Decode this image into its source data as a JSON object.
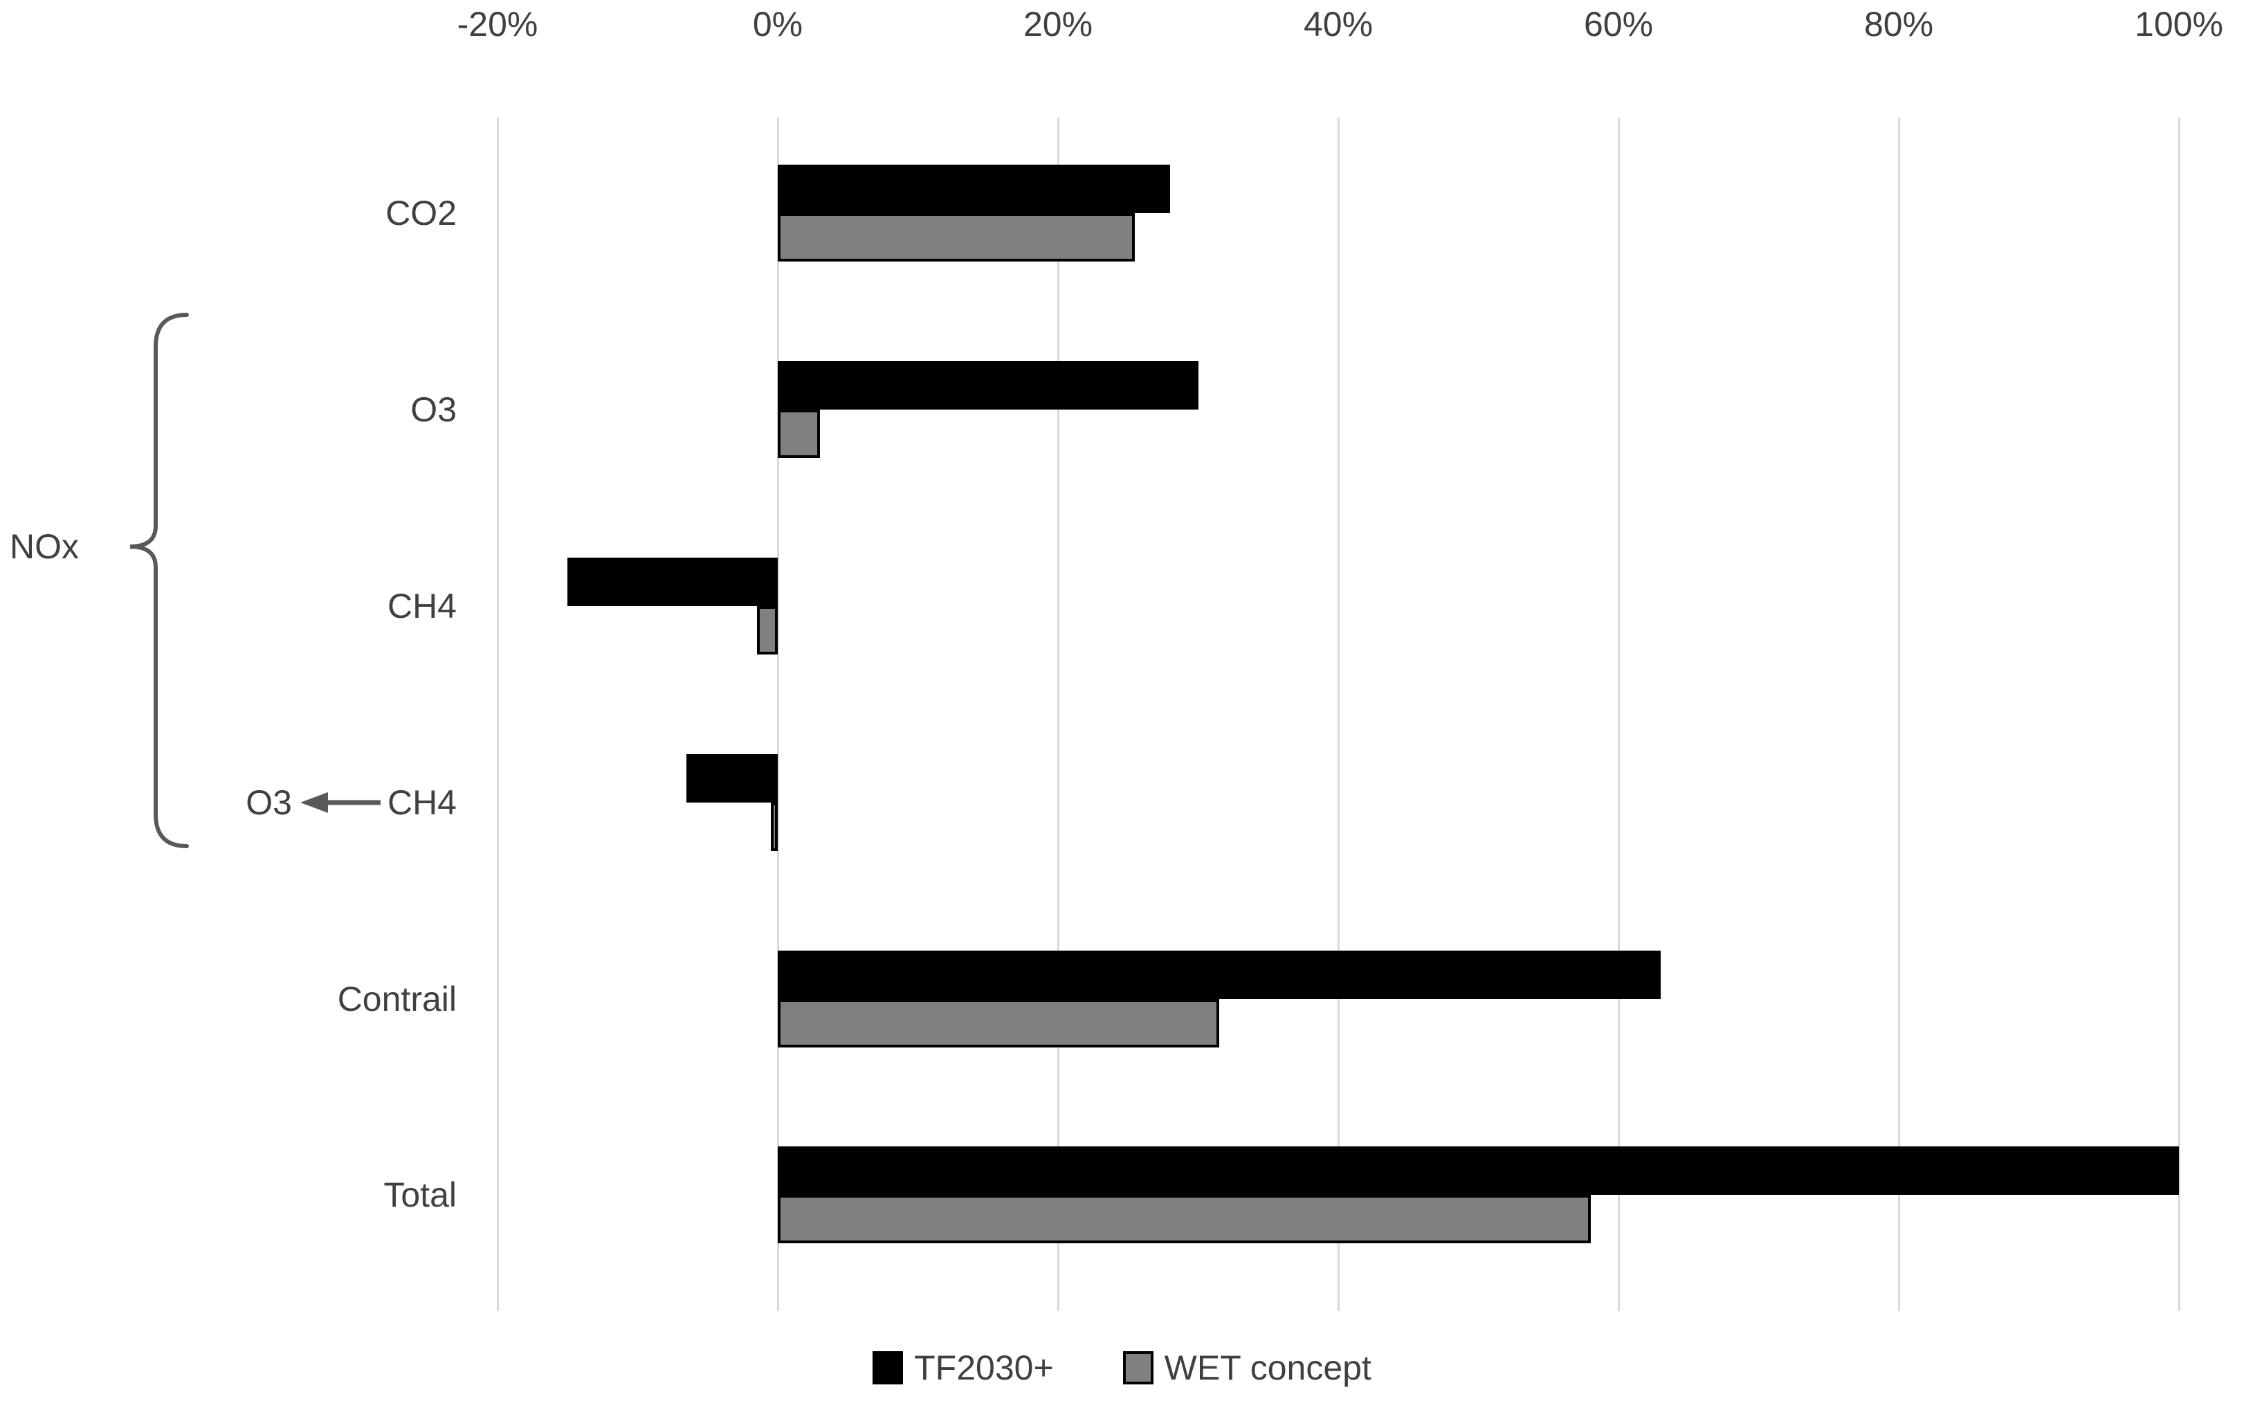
{
  "chart_data": {
    "type": "bar",
    "orientation": "horizontal",
    "title": "",
    "categories": [
      "CO2",
      "O3",
      "CH4",
      "O3 ←CH4",
      "Contrail",
      "Total"
    ],
    "series": [
      {
        "name": "TF2030+",
        "color": "#000000",
        "values": [
          28,
          30,
          -15,
          -6.5,
          63,
          100
        ]
      },
      {
        "name": "WET concept",
        "color": "#808080",
        "values": [
          25.5,
          3,
          -1.5,
          -0.5,
          31.5,
          58
        ]
      }
    ],
    "x_ticks": {
      "labels": [
        "-20%",
        "0%",
        "20%",
        "40%",
        "60%",
        "80%",
        "100%"
      ],
      "values": [
        -20,
        0,
        20,
        40,
        60,
        80,
        100
      ]
    },
    "xlim": [
      -20,
      100
    ],
    "unit": "%",
    "grid": true,
    "legend_position": "bottom",
    "group_label": {
      "text": "NOx",
      "applies_to": [
        "O3",
        "CH4",
        "O3 ←CH4"
      ]
    }
  },
  "colors": {
    "background": "#ffffff",
    "grid": "#d9d9d9",
    "text": "#404040",
    "bar_border": "#000000",
    "brace": "#595959",
    "arrow": "#595959"
  }
}
